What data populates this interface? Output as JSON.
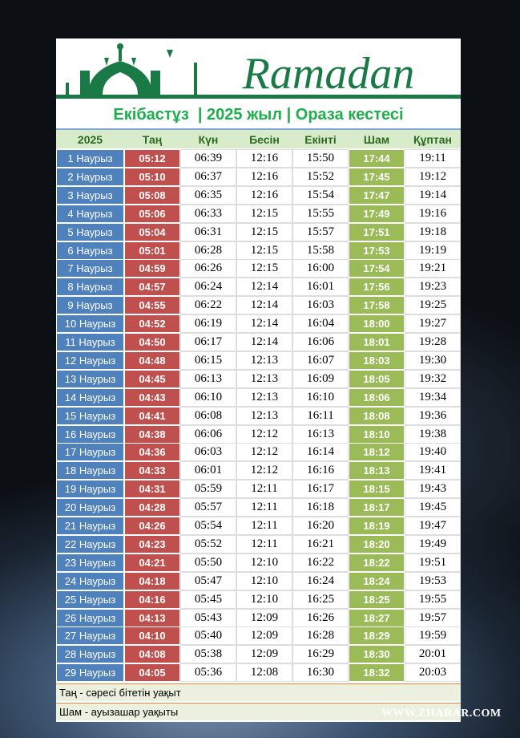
{
  "logo": "Ramadan",
  "title": "Екібастұз  | 2025 жыл | Ораза кестесі",
  "table": {
    "header": [
      "2025",
      "Таң",
      "Күн",
      "Бесін",
      "Екінті",
      "Шам",
      "Құптан"
    ],
    "rows": [
      [
        "1 Наурыз",
        "05:12",
        "06:39",
        "12:16",
        "15:50",
        "17:44",
        "19:11"
      ],
      [
        "2 Наурыз",
        "05:10",
        "06:37",
        "12:16",
        "15:52",
        "17:45",
        "19:12"
      ],
      [
        "3 Наурыз",
        "05:08",
        "06:35",
        "12:16",
        "15:54",
        "17:47",
        "19:14"
      ],
      [
        "4 Наурыз",
        "05:06",
        "06:33",
        "12:15",
        "15:55",
        "17:49",
        "19:16"
      ],
      [
        "5 Наурыз",
        "05:04",
        "06:31",
        "12:15",
        "15:57",
        "17:51",
        "19:18"
      ],
      [
        "6 Наурыз",
        "05:01",
        "06:28",
        "12:15",
        "15:58",
        "17:53",
        "19:19"
      ],
      [
        "7 Наурыз",
        "04:59",
        "06:26",
        "12:15",
        "16:00",
        "17:54",
        "19:21"
      ],
      [
        "8 Наурыз",
        "04:57",
        "06:24",
        "12:14",
        "16:01",
        "17:56",
        "19:23"
      ],
      [
        "9 Наурыз",
        "04:55",
        "06:22",
        "12:14",
        "16:03",
        "17:58",
        "19:25"
      ],
      [
        "10 Наурыз",
        "04:52",
        "06:19",
        "12:14",
        "16:04",
        "18:00",
        "19:27"
      ],
      [
        "11 Наурыз",
        "04:50",
        "06:17",
        "12:14",
        "16:06",
        "18:01",
        "19:28"
      ],
      [
        "12 Наурыз",
        "04:48",
        "06:15",
        "12:13",
        "16:07",
        "18:03",
        "19:30"
      ],
      [
        "13 Наурыз",
        "04:45",
        "06:13",
        "12:13",
        "16:09",
        "18:05",
        "19:32"
      ],
      [
        "14 Наурыз",
        "04:43",
        "06:10",
        "12:13",
        "16:10",
        "18:06",
        "19:34"
      ],
      [
        "15 Наурыз",
        "04:41",
        "06:08",
        "12:13",
        "16:11",
        "18:08",
        "19:36"
      ],
      [
        "16 Наурыз",
        "04:38",
        "06:06",
        "12:12",
        "16:13",
        "18:10",
        "19:38"
      ],
      [
        "17 Наурыз",
        "04:36",
        "06:03",
        "12:12",
        "16:14",
        "18:12",
        "19:40"
      ],
      [
        "18 Наурыз",
        "04:33",
        "06:01",
        "12:12",
        "16:16",
        "18:13",
        "19:41"
      ],
      [
        "19 Наурыз",
        "04:31",
        "05:59",
        "12:11",
        "16:17",
        "18:15",
        "19:43"
      ],
      [
        "20 Наурыз",
        "04:28",
        "05:57",
        "12:11",
        "16:18",
        "18:17",
        "19:45"
      ],
      [
        "21 Наурыз",
        "04:26",
        "05:54",
        "12:11",
        "16:20",
        "18:19",
        "19:47"
      ],
      [
        "22 Наурыз",
        "04:23",
        "05:52",
        "12:11",
        "16:21",
        "18:20",
        "19:49"
      ],
      [
        "23 Наурыз",
        "04:21",
        "05:50",
        "12:10",
        "16:22",
        "18:22",
        "19:51"
      ],
      [
        "24 Наурыз",
        "04:18",
        "05:47",
        "12:10",
        "16:24",
        "18:24",
        "19:53"
      ],
      [
        "25 Наурыз",
        "04:16",
        "05:45",
        "12:10",
        "16:25",
        "18:25",
        "19:55"
      ],
      [
        "26 Наурыз",
        "04:13",
        "05:43",
        "12:09",
        "16:26",
        "18:27",
        "19:57"
      ],
      [
        "27 Наурыз",
        "04:10",
        "05:40",
        "12:09",
        "16:28",
        "18:29",
        "19:59"
      ],
      [
        "28 Наурыз",
        "04:08",
        "05:38",
        "12:09",
        "16:29",
        "18:30",
        "20:01"
      ],
      [
        "29 Наурыз",
        "04:05",
        "05:36",
        "12:08",
        "16:30",
        "18:32",
        "20:03"
      ]
    ]
  },
  "notes": [
    "Таң - сәресі бітетін уақыт",
    "Шам - ауызашар уақыты"
  ],
  "watermark": "WWW.ZHARAR.COM"
}
